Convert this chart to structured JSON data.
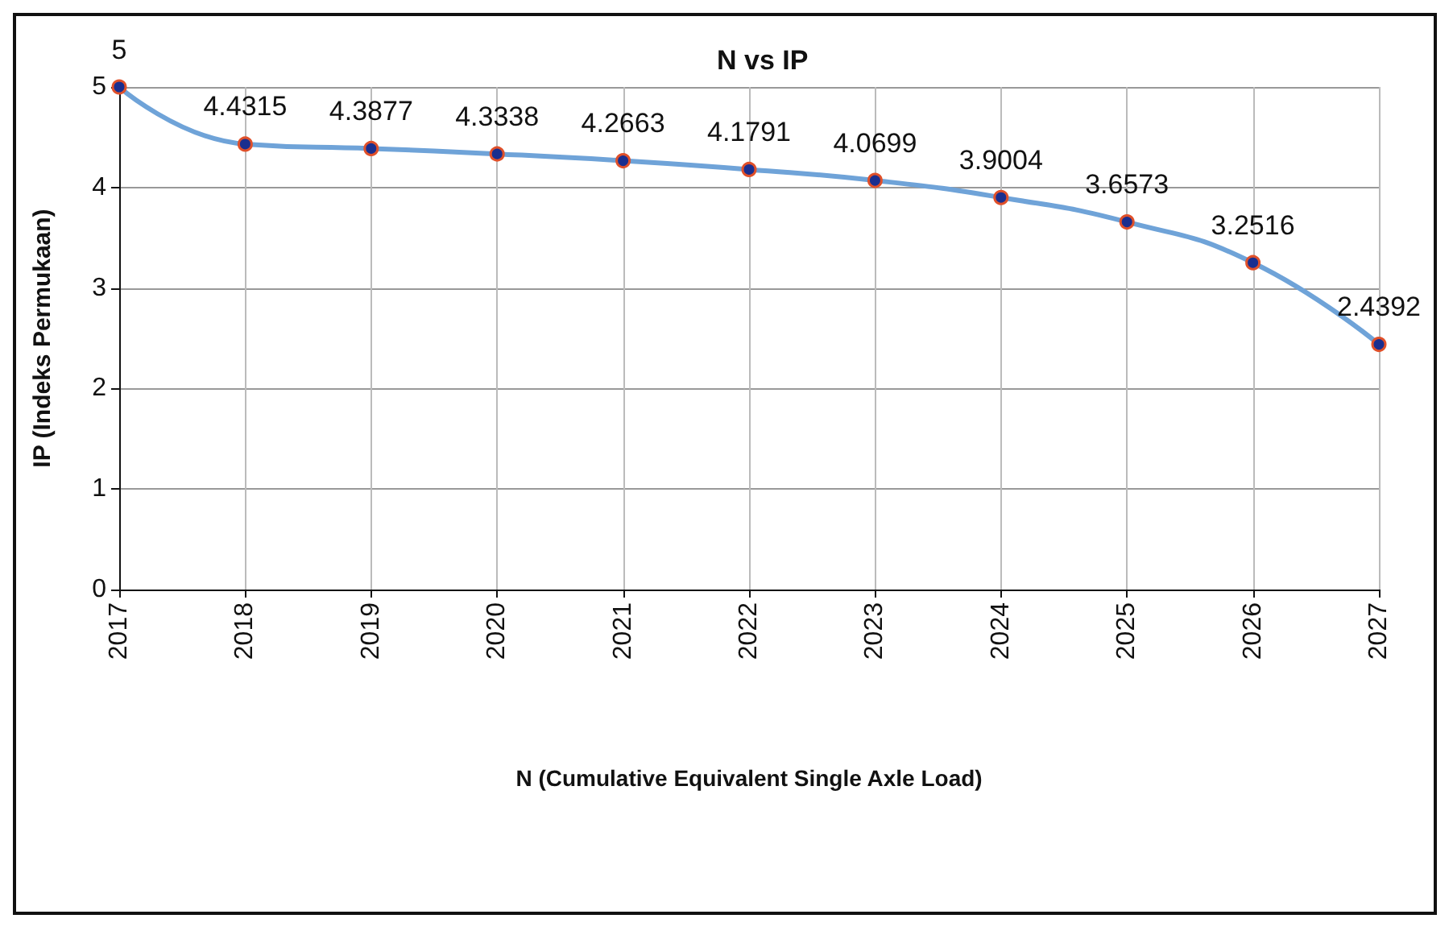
{
  "chart_data": {
    "type": "line",
    "title": "N vs IP",
    "xlabel": "N (Cumulative Equivalent Single Axle Load)",
    "ylabel": "IP (Indeks Permukaan)",
    "categories": [
      "2017",
      "2018",
      "2019",
      "2020",
      "2021",
      "2022",
      "2023",
      "2024",
      "2025",
      "2026",
      "2027"
    ],
    "series": [
      {
        "color": "#6fa3d8",
        "values": [
          5,
          4.4315,
          4.3877,
          4.3338,
          4.2663,
          4.1791,
          4.0699,
          3.9004,
          3.6573,
          3.2516,
          2.4392
        ]
      }
    ],
    "ylim": [
      0,
      5
    ],
    "yticks": [
      0,
      1,
      2,
      3,
      4,
      5
    ],
    "grid": true,
    "marker": "circle",
    "data_labels": true
  }
}
